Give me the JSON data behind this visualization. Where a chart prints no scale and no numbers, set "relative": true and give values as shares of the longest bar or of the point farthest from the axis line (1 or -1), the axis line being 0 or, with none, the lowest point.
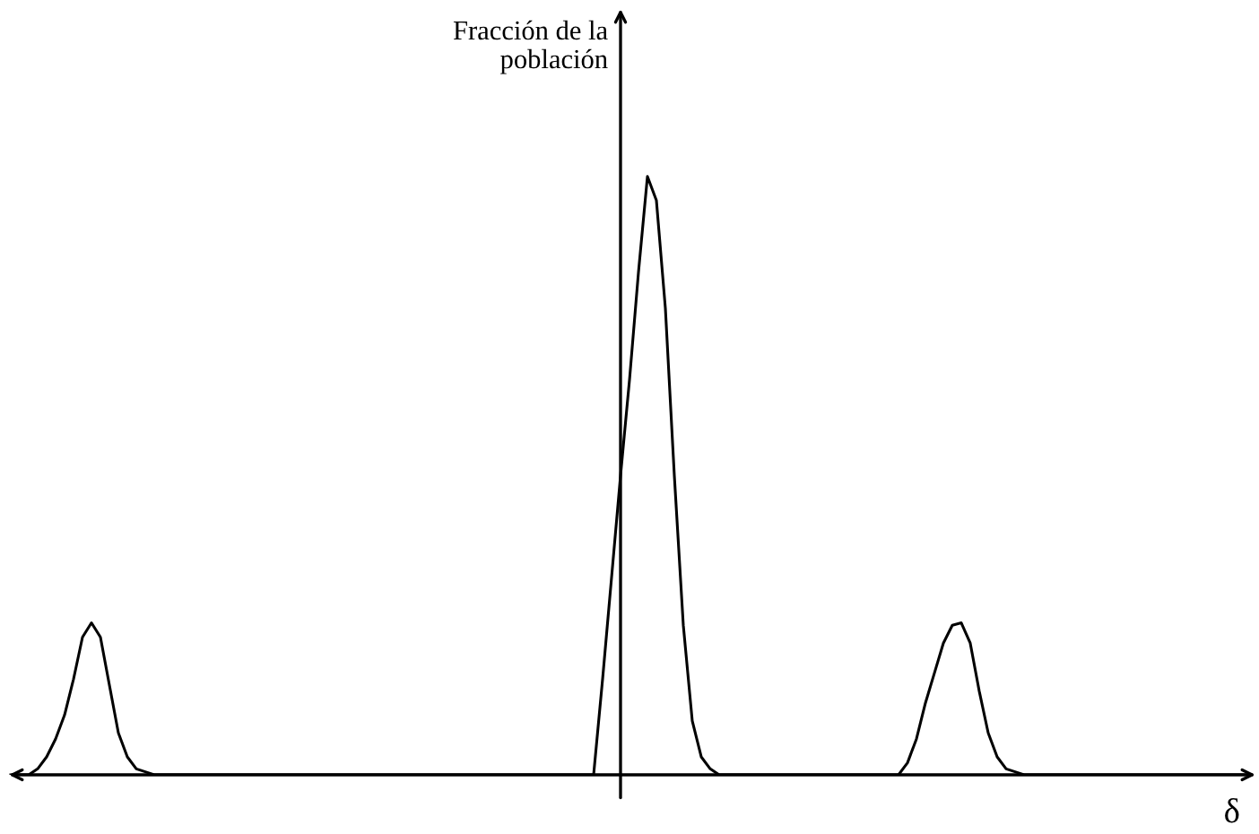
{
  "chart_data": {
    "type": "line",
    "relative": true,
    "ylabel": "Fracción de la\npoblación",
    "xlabel": "δ",
    "color": "#000000",
    "marker": "none",
    "line_style": "solid",
    "legend": false,
    "categories": [
      null,
      null,
      null,
      null,
      null,
      null,
      null,
      null,
      null,
      null,
      null,
      null,
      null,
      null,
      null,
      null,
      null,
      null,
      null,
      null,
      null,
      null,
      null,
      null,
      null,
      null,
      null,
      null,
      null,
      null,
      null,
      null,
      null,
      null,
      null,
      null,
      null,
      null,
      null,
      null,
      null,
      null,
      null,
      null,
      null,
      null,
      null,
      null,
      null,
      null,
      null,
      null,
      null,
      null,
      null,
      null,
      null,
      null,
      null,
      null,
      null,
      null,
      null,
      null,
      null,
      null,
      null,
      null,
      null,
      null,
      null,
      null,
      null,
      null,
      null,
      null,
      null,
      null,
      null,
      null,
      null,
      null,
      null,
      null,
      null,
      null,
      null,
      null,
      null,
      null,
      null,
      null,
      null,
      null,
      null,
      null,
      null,
      null,
      null,
      null,
      null,
      null,
      null,
      null,
      null,
      null,
      null,
      null,
      null,
      null,
      null,
      null,
      null,
      null,
      null,
      null,
      null,
      null,
      null,
      null,
      null,
      null,
      null,
      null,
      null,
      null,
      null,
      null,
      null,
      null,
      null,
      null,
      null,
      null,
      null,
      null,
      null,
      null,
      null
    ],
    "values": [
      0,
      0,
      0,
      0.01,
      0.03,
      0.06,
      0.1,
      0.16,
      0.23,
      0.254,
      0.23,
      0.15,
      0.07,
      0.03,
      0.01,
      0.005,
      0,
      0,
      0,
      0,
      0,
      0,
      0,
      0,
      0,
      0,
      0,
      0,
      0,
      0,
      0,
      0,
      0,
      0,
      0,
      0,
      0,
      0,
      0,
      0,
      0,
      0,
      0,
      0,
      0,
      0,
      0,
      0,
      0,
      0,
      0,
      0,
      0,
      0,
      0,
      0,
      0,
      0,
      0,
      0,
      0,
      0,
      0,
      0,
      0,
      0,
      0.16,
      0.33,
      0.5,
      0.66,
      0.84,
      1,
      0.96,
      0.78,
      0.5,
      0.25,
      0.09,
      0.03,
      0.01,
      0,
      0,
      0,
      0,
      0,
      0,
      0,
      0,
      0,
      0,
      0,
      0,
      0,
      0,
      0,
      0,
      0,
      0,
      0,
      0,
      0,
      0.02,
      0.06,
      0.12,
      0.17,
      0.22,
      0.25,
      0.254,
      0.22,
      0.14,
      0.07,
      0.03,
      0.01,
      0.005,
      0,
      0,
      0,
      0,
      0,
      0,
      0,
      0,
      0,
      0,
      0,
      0,
      0,
      0,
      0,
      0,
      0,
      0,
      0,
      0,
      0,
      0,
      0,
      0,
      0,
      0
    ]
  }
}
